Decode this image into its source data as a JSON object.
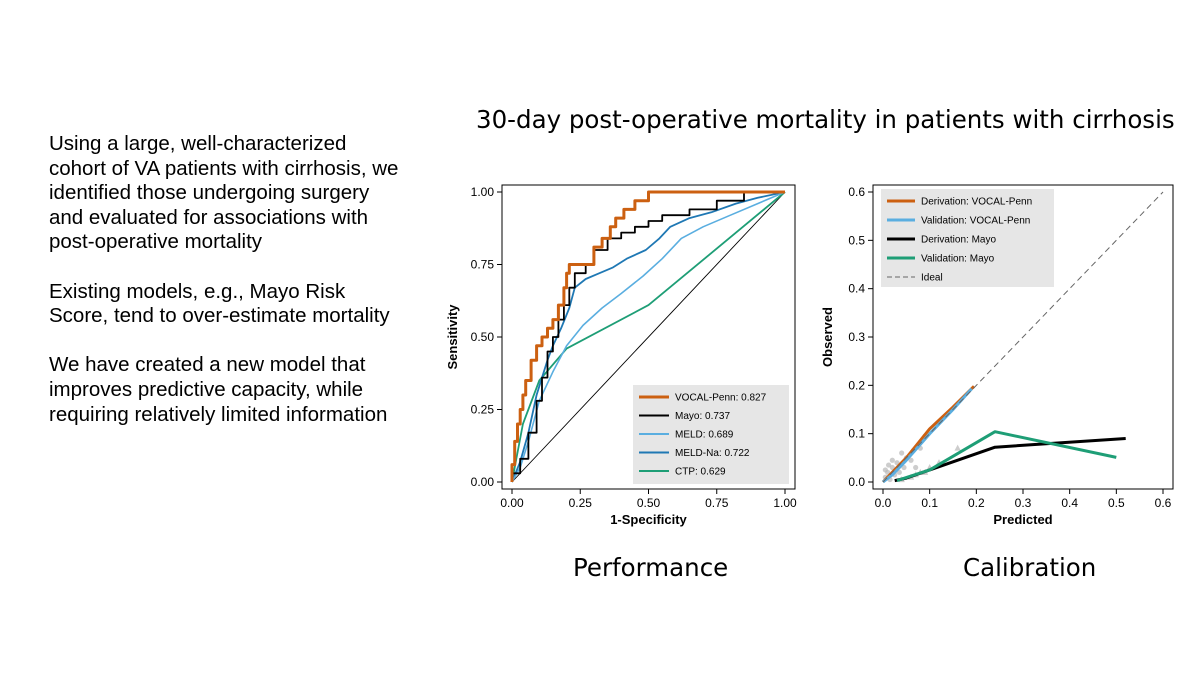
{
  "slide": {
    "title": "30-day post-operative mortality in patients with cirrhosis",
    "bullets": [
      "Using a large, well-characterized cohort of VA patients with cirrhosis, we identified those undergoing surgery and evaluated for associations with post-operative mortality",
      "Existing models, e.g., Mayo Risk Score, tend to over-estimate mortality",
      "We have created a new model that improves predictive capacity, while requiring relatively limited information"
    ],
    "captions": {
      "performance": "Performance",
      "calibration": "Calibration"
    }
  },
  "colors": {
    "orange": "#cc6011",
    "black": "#000000",
    "lightblue": "#5aaee0",
    "blue": "#1f78b4",
    "green": "#1e9e76",
    "grey": "#a0a0a0"
  },
  "chart_data": [
    {
      "type": "line",
      "name": "roc",
      "xlabel": "1-Specificity",
      "ylabel": "Sensitivity",
      "xlim": [
        0,
        1
      ],
      "ylim": [
        0,
        1
      ],
      "xticks": [
        "0.00",
        "0.25",
        "0.50",
        "0.75",
        "1.00"
      ],
      "yticks": [
        "0.00",
        "0.25",
        "0.50",
        "0.75",
        "1.00"
      ],
      "legend_position": "bottom-right",
      "reference_line": [
        [
          0,
          0
        ],
        [
          1,
          1
        ]
      ],
      "series": [
        {
          "name": "VOCAL-Penn: 0.827",
          "color": "#cc6011",
          "width": 3,
          "points": [
            [
              0,
              0
            ],
            [
              0,
              0.06
            ],
            [
              0.01,
              0.06
            ],
            [
              0.01,
              0.14
            ],
            [
              0.02,
              0.14
            ],
            [
              0.02,
              0.2
            ],
            [
              0.03,
              0.2
            ],
            [
              0.03,
              0.25
            ],
            [
              0.04,
              0.25
            ],
            [
              0.04,
              0.3
            ],
            [
              0.05,
              0.3
            ],
            [
              0.05,
              0.35
            ],
            [
              0.07,
              0.35
            ],
            [
              0.07,
              0.42
            ],
            [
              0.09,
              0.42
            ],
            [
              0.09,
              0.47
            ],
            [
              0.11,
              0.47
            ],
            [
              0.11,
              0.5
            ],
            [
              0.13,
              0.5
            ],
            [
              0.13,
              0.53
            ],
            [
              0.15,
              0.53
            ],
            [
              0.15,
              0.56
            ],
            [
              0.17,
              0.56
            ],
            [
              0.17,
              0.61
            ],
            [
              0.19,
              0.61
            ],
            [
              0.19,
              0.67
            ],
            [
              0.2,
              0.67
            ],
            [
              0.2,
              0.72
            ],
            [
              0.21,
              0.72
            ],
            [
              0.21,
              0.75
            ],
            [
              0.3,
              0.75
            ],
            [
              0.3,
              0.81
            ],
            [
              0.33,
              0.81
            ],
            [
              0.33,
              0.84
            ],
            [
              0.36,
              0.84
            ],
            [
              0.36,
              0.88
            ],
            [
              0.38,
              0.88
            ],
            [
              0.38,
              0.91
            ],
            [
              0.41,
              0.91
            ],
            [
              0.41,
              0.94
            ],
            [
              0.45,
              0.94
            ],
            [
              0.45,
              0.97
            ],
            [
              0.5,
              0.97
            ],
            [
              0.5,
              1.0
            ],
            [
              1,
              1
            ]
          ]
        },
        {
          "name": "Mayo: 0.737",
          "color": "#000000",
          "width": 1.8,
          "points": [
            [
              0,
              0
            ],
            [
              0,
              0.03
            ],
            [
              0.03,
              0.03
            ],
            [
              0.03,
              0.08
            ],
            [
              0.06,
              0.08
            ],
            [
              0.06,
              0.17
            ],
            [
              0.09,
              0.17
            ],
            [
              0.09,
              0.28
            ],
            [
              0.11,
              0.28
            ],
            [
              0.11,
              0.36
            ],
            [
              0.13,
              0.36
            ],
            [
              0.13,
              0.45
            ],
            [
              0.15,
              0.45
            ],
            [
              0.15,
              0.5
            ],
            [
              0.17,
              0.5
            ],
            [
              0.17,
              0.56
            ],
            [
              0.19,
              0.56
            ],
            [
              0.19,
              0.61
            ],
            [
              0.21,
              0.61
            ],
            [
              0.21,
              0.67
            ],
            [
              0.23,
              0.67
            ],
            [
              0.23,
              0.72
            ],
            [
              0.27,
              0.72
            ],
            [
              0.27,
              0.75
            ],
            [
              0.3,
              0.75
            ],
            [
              0.3,
              0.8
            ],
            [
              0.35,
              0.8
            ],
            [
              0.35,
              0.84
            ],
            [
              0.4,
              0.84
            ],
            [
              0.4,
              0.86
            ],
            [
              0.45,
              0.86
            ],
            [
              0.45,
              0.88
            ],
            [
              0.5,
              0.88
            ],
            [
              0.5,
              0.9
            ],
            [
              0.55,
              0.9
            ],
            [
              0.55,
              0.92
            ],
            [
              0.65,
              0.92
            ],
            [
              0.65,
              0.94
            ],
            [
              0.75,
              0.94
            ],
            [
              0.75,
              0.97
            ],
            [
              0.85,
              0.97
            ],
            [
              0.85,
              1.0
            ],
            [
              1,
              1
            ]
          ]
        },
        {
          "name": "MELD: 0.689",
          "color": "#5aaee0",
          "width": 1.6,
          "points": [
            [
              0,
              0
            ],
            [
              0.03,
              0.05
            ],
            [
              0.06,
              0.14
            ],
            [
              0.1,
              0.28
            ],
            [
              0.15,
              0.38
            ],
            [
              0.2,
              0.47
            ],
            [
              0.26,
              0.54
            ],
            [
              0.33,
              0.6
            ],
            [
              0.4,
              0.65
            ],
            [
              0.48,
              0.71
            ],
            [
              0.55,
              0.77
            ],
            [
              0.62,
              0.84
            ],
            [
              0.7,
              0.88
            ],
            [
              0.8,
              0.92
            ],
            [
              0.9,
              0.96
            ],
            [
              1,
              1
            ]
          ]
        },
        {
          "name": "MELD-Na: 0.722",
          "color": "#1f78b4",
          "width": 1.8,
          "points": [
            [
              0,
              0
            ],
            [
              0.03,
              0.07
            ],
            [
              0.06,
              0.17
            ],
            [
              0.09,
              0.3
            ],
            [
              0.11,
              0.36
            ],
            [
              0.13,
              0.42
            ],
            [
              0.15,
              0.47
            ],
            [
              0.18,
              0.53
            ],
            [
              0.21,
              0.6
            ],
            [
              0.23,
              0.67
            ],
            [
              0.27,
              0.7
            ],
            [
              0.32,
              0.72
            ],
            [
              0.37,
              0.74
            ],
            [
              0.42,
              0.77
            ],
            [
              0.49,
              0.8
            ],
            [
              0.54,
              0.84
            ],
            [
              0.58,
              0.88
            ],
            [
              0.65,
              0.91
            ],
            [
              0.73,
              0.93
            ],
            [
              0.82,
              0.96
            ],
            [
              0.9,
              0.98
            ],
            [
              1,
              1
            ]
          ]
        },
        {
          "name": "CTP: 0.629",
          "color": "#1e9e76",
          "width": 1.8,
          "points": [
            [
              0,
              0
            ],
            [
              0.01,
              0.05
            ],
            [
              0.04,
              0.2
            ],
            [
              0.1,
              0.35
            ],
            [
              0.2,
              0.46
            ],
            [
              0.5,
              0.61
            ],
            [
              1,
              1
            ]
          ]
        }
      ]
    },
    {
      "type": "line",
      "name": "calibration",
      "xlabel": "Predicted",
      "ylabel": "Observed",
      "xlim": [
        0,
        0.6
      ],
      "ylim": [
        0,
        0.6
      ],
      "xticks": [
        "0.0",
        "0.1",
        "0.2",
        "0.3",
        "0.4",
        "0.5",
        "0.6"
      ],
      "yticks": [
        "0.0",
        "0.1",
        "0.2",
        "0.3",
        "0.4",
        "0.5",
        "0.6"
      ],
      "legend_position": "top-left",
      "series": [
        {
          "name": "Derivation: VOCAL-Penn",
          "color": "#cc6011",
          "width": 3,
          "points": [
            [
              0.0,
              0.0
            ],
            [
              0.02,
              0.02
            ],
            [
              0.05,
              0.05
            ],
            [
              0.1,
              0.11
            ],
            [
              0.15,
              0.155
            ],
            [
              0.195,
              0.198
            ]
          ]
        },
        {
          "name": "Validation: VOCAL-Penn",
          "color": "#5aaee0",
          "width": 3,
          "points": [
            [
              0.0,
              0.0
            ],
            [
              0.02,
              0.015
            ],
            [
              0.05,
              0.045
            ],
            [
              0.1,
              0.1
            ],
            [
              0.15,
              0.15
            ],
            [
              0.19,
              0.193
            ]
          ]
        },
        {
          "name": "Derivation: Mayo",
          "color": "#000000",
          "width": 3,
          "points": [
            [
              0.025,
              0.003
            ],
            [
              0.05,
              0.008
            ],
            [
              0.1,
              0.025
            ],
            [
              0.24,
              0.072
            ],
            [
              0.52,
              0.09
            ]
          ]
        },
        {
          "name": "Validation: Mayo",
          "color": "#1e9e76",
          "width": 3,
          "points": [
            [
              0.03,
              0.003
            ],
            [
              0.1,
              0.025
            ],
            [
              0.24,
              0.104
            ],
            [
              0.5,
              0.051
            ]
          ]
        },
        {
          "name": "Ideal",
          "color": "#666666",
          "width": 1,
          "dash": true,
          "points": [
            [
              0,
              0
            ],
            [
              0.6,
              0.6
            ]
          ]
        }
      ],
      "scatter": {
        "circles": [
          [
            0.005,
            0.01
          ],
          [
            0.01,
            0.02
          ],
          [
            0.015,
            0.005
          ],
          [
            0.02,
            0.03
          ],
          [
            0.025,
            0.015
          ],
          [
            0.03,
            0.04
          ],
          [
            0.035,
            0.02
          ],
          [
            0.04,
            0.06
          ],
          [
            0.045,
            0.03
          ],
          [
            0.05,
            0.05
          ],
          [
            0.06,
            0.045
          ],
          [
            0.065,
            0.065
          ],
          [
            0.07,
            0.03
          ],
          [
            0.08,
            0.07
          ],
          [
            0.09,
            0.095
          ],
          [
            0.005,
            0.025
          ],
          [
            0.012,
            0.035
          ],
          [
            0.02,
            0.045
          ]
        ],
        "triangles": [
          [
            0.04,
            0.005
          ],
          [
            0.06,
            0.01
          ],
          [
            0.07,
            0.015
          ],
          [
            0.08,
            0.02
          ],
          [
            0.09,
            0.02
          ],
          [
            0.1,
            0.03
          ],
          [
            0.12,
            0.04
          ],
          [
            0.16,
            0.07
          ]
        ]
      }
    }
  ]
}
